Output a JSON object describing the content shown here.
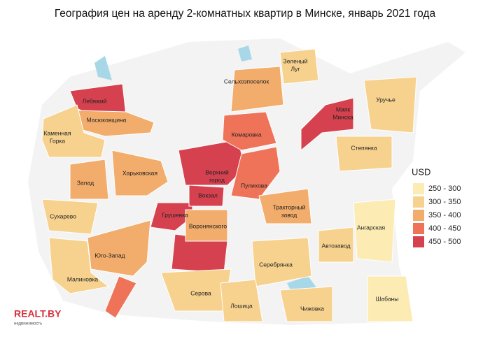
{
  "title": "География цен на аренду 2-комнатных квартир в Минске, январь 2021 года",
  "legend": {
    "title": "USD",
    "items": [
      {
        "label": "250 - 300",
        "color": "#fcebb3"
      },
      {
        "label": "300 - 350",
        "color": "#f6d28e"
      },
      {
        "label": "350 - 400",
        "color": "#f2ac6b"
      },
      {
        "label": "400 - 450",
        "color": "#ee7359"
      },
      {
        "label": "450 - 500",
        "color": "#d6414f"
      }
    ]
  },
  "districts": [
    {
      "name": "Лебяжий",
      "color": "#d6414f"
    },
    {
      "name": "Масюковщина",
      "color": "#f2ac6b"
    },
    {
      "name": [
        "Каменная",
        "Горка"
      ],
      "color": "#f6d28e"
    },
    {
      "name": "Запад",
      "color": "#f2ac6b"
    },
    {
      "name": "Харьковская",
      "color": "#f2ac6b"
    },
    {
      "name": "Сухарево",
      "color": "#f6d28e"
    },
    {
      "name": "Юго-Запад",
      "color": "#f2ac6b"
    },
    {
      "name": "Малиновка",
      "color": "#f6d28e"
    },
    {
      "name": "Грушевка",
      "color": "#d6414f"
    },
    {
      "name": "Воронянского",
      "color": "#f2ac6b"
    },
    {
      "name": "Вокзал",
      "color": "#d6414f"
    },
    {
      "name": [
        "Верхний",
        "город"
      ],
      "color": "#d6414f"
    },
    {
      "name": "Пулихова",
      "color": "#ee7359"
    },
    {
      "name": "Комаровка",
      "color": "#ee7359"
    },
    {
      "name": "Сельхозпоселок",
      "color": "#f2ac6b"
    },
    {
      "name": [
        "Зеленый",
        "Луг"
      ],
      "color": "#f6d28e"
    },
    {
      "name": [
        "Маяк",
        "Минска"
      ],
      "color": "#d6414f"
    },
    {
      "name": "Уручье",
      "color": "#f6d28e"
    },
    {
      "name": "Степянка",
      "color": "#f6d28e"
    },
    {
      "name": [
        "Тракторный",
        "завод"
      ],
      "color": "#f2ac6b"
    },
    {
      "name": "Ангарская",
      "color": "#fcebb3"
    },
    {
      "name": "Автозавод",
      "color": "#f6d28e"
    },
    {
      "name": "Серебрянка",
      "color": "#f6d28e"
    },
    {
      "name": "Серова",
      "color": "#f6d28e"
    },
    {
      "name": "Лошица",
      "color": "#f6d28e"
    },
    {
      "name": "Чижовка",
      "color": "#f6d28e"
    },
    {
      "name": "Шабаны",
      "color": "#fcebb3"
    }
  ],
  "logo": {
    "brand": "REALT.BY",
    "tagline": "недвижимость"
  }
}
